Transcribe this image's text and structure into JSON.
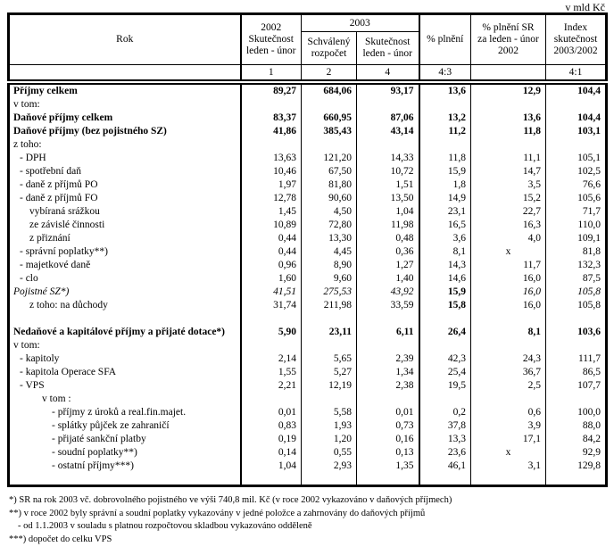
{
  "unit_label": "v mld Kč",
  "header": {
    "rok": "Rok",
    "y2002": {
      "l1": "2002",
      "l2": "Skutečnost",
      "l3": "leden - únor"
    },
    "y2003": "2003",
    "schvaleny": {
      "l1": "Schválený",
      "l2": "rozpočet"
    },
    "skutecnost2003": {
      "l1": "Skutečnost",
      "l2": "leden - únor"
    },
    "plneni": "% plnění",
    "plneni_sr": {
      "l1": "% plnění SR",
      "l2": "za leden - únor",
      "l3": "2002"
    },
    "index": {
      "l1": "Index",
      "l2": "skutečnost",
      "l3": "2003/2002"
    },
    "nums": {
      "c1": "1",
      "c2": "2",
      "c3": "4",
      "c4": "4:3",
      "c5": "",
      "c6": "4:1"
    }
  },
  "rows": [
    {
      "label": "Příjmy celkem",
      "indent": 0,
      "style": "bold",
      "values": [
        "89,27",
        "684,06",
        "93,17",
        "13,6",
        "12,9",
        "104,4"
      ]
    },
    {
      "label": "v tom:",
      "indent": 0,
      "style": "",
      "values": [
        "",
        "",
        "",
        "",
        "",
        ""
      ]
    },
    {
      "label": "Daňové příjmy celkem",
      "indent": 0,
      "style": "bold",
      "values": [
        "83,37",
        "660,95",
        "87,06",
        "13,2",
        "13,6",
        "104,4"
      ]
    },
    {
      "label": "Daňové příjmy (bez pojistného SZ)",
      "indent": 0,
      "style": "bold",
      "values": [
        "41,86",
        "385,43",
        "43,14",
        "11,2",
        "11,8",
        "103,1"
      ]
    },
    {
      "label": "z toho:",
      "indent": 0,
      "style": "",
      "values": [
        "",
        "",
        "",
        "",
        "",
        ""
      ]
    },
    {
      "label": "- DPH",
      "indent": 1,
      "style": "",
      "values": [
        "13,63",
        "121,20",
        "14,33",
        "11,8",
        "11,1",
        "105,1"
      ]
    },
    {
      "label": "- spotřební daň",
      "indent": 1,
      "style": "",
      "values": [
        "10,46",
        "67,50",
        "10,72",
        "15,9",
        "14,7",
        "102,5"
      ]
    },
    {
      "label": "- daně z příjmů PO",
      "indent": 1,
      "style": "",
      "values": [
        "1,97",
        "81,80",
        "1,51",
        "1,8",
        "3,5",
        "76,6"
      ]
    },
    {
      "label": "- daně z příjmů FO",
      "indent": 1,
      "style": "",
      "values": [
        "12,78",
        "90,60",
        "13,50",
        "14,9",
        "15,2",
        "105,6"
      ]
    },
    {
      "label": "vybíraná srážkou",
      "indent": 2,
      "style": "",
      "values": [
        "1,45",
        "4,50",
        "1,04",
        "23,1",
        "22,7",
        "71,7"
      ]
    },
    {
      "label": "ze závislé činnosti",
      "indent": 2,
      "style": "",
      "values": [
        "10,89",
        "72,80",
        "11,98",
        "16,5",
        "16,3",
        "110,0"
      ]
    },
    {
      "label": "z přiznání",
      "indent": 2,
      "style": "",
      "values": [
        "0,44",
        "13,30",
        "0,48",
        "3,6",
        "4,0",
        "109,1"
      ]
    },
    {
      "label": "- správní poplatky**)",
      "indent": 1,
      "style": "",
      "values": [
        "0,44",
        "4,45",
        "0,36",
        "8,1",
        "x",
        "81,8"
      ]
    },
    {
      "label": "- majetkové daně",
      "indent": 1,
      "style": "",
      "values": [
        "0,96",
        "8,90",
        "1,27",
        "14,3",
        "11,7",
        "132,3"
      ]
    },
    {
      "label": "- clo",
      "indent": 1,
      "style": "",
      "values": [
        "1,60",
        "9,60",
        "1,40",
        "14,6",
        "16,0",
        "87,5"
      ]
    },
    {
      "label": "Pojistné SZ*)",
      "indent": 0,
      "style": "italic",
      "values": [
        "41,51",
        "275,53",
        "43,92",
        "15,9",
        "16,0",
        "105,8"
      ],
      "value_styles": [
        "italic",
        "italic",
        "italic",
        "bold",
        "italic",
        "italic"
      ]
    },
    {
      "label": "z toho: na důchody",
      "indent": 2,
      "style": "",
      "values": [
        "31,74",
        "211,98",
        "33,59",
        "15,8",
        "16,0",
        "105,8"
      ],
      "value_styles": [
        "",
        "",
        "",
        "bold",
        "",
        ""
      ]
    },
    {
      "label": "",
      "indent": 0,
      "style": "",
      "values": [
        "",
        "",
        "",
        "",
        "",
        ""
      ]
    },
    {
      "label": "Nedaňové a kapitálové příjmy a přijaté dotace*)",
      "indent": 0,
      "style": "bold",
      "values": [
        "5,90",
        "23,11",
        "6,11",
        "26,4",
        "8,1",
        "103,6"
      ]
    },
    {
      "label": "v tom:",
      "indent": 0,
      "style": "",
      "values": [
        "",
        "",
        "",
        "",
        "",
        ""
      ]
    },
    {
      "label": "- kapitoly",
      "indent": 1,
      "style": "",
      "values": [
        "2,14",
        "5,65",
        "2,39",
        "42,3",
        "24,3",
        "111,7"
      ]
    },
    {
      "label": "- kapitola Operace SFA",
      "indent": 1,
      "style": "",
      "values": [
        "1,55",
        "5,27",
        "1,34",
        "25,4",
        "36,7",
        "86,5"
      ]
    },
    {
      "label": "- VPS",
      "indent": 1,
      "style": "",
      "values": [
        "2,21",
        "12,19",
        "2,38",
        "19,5",
        "2,5",
        "107,7"
      ]
    },
    {
      "label": "v tom :",
      "indent": 3,
      "style": "",
      "values": [
        "",
        "",
        "",
        "",
        "",
        ""
      ]
    },
    {
      "label": "- příjmy z úroků a real.fin.majet.",
      "indent": 4,
      "style": "",
      "values": [
        "0,01",
        "5,58",
        "0,01",
        "0,2",
        "0,6",
        "100,0"
      ]
    },
    {
      "label": "- splátky půjček ze zahraničí",
      "indent": 4,
      "style": "",
      "values": [
        "0,83",
        "1,93",
        "0,73",
        "37,8",
        "3,9",
        "88,0"
      ]
    },
    {
      "label": "- přijaté sankční platby",
      "indent": 4,
      "style": "",
      "values": [
        "0,19",
        "1,20",
        "0,16",
        "13,3",
        "17,1",
        "84,2"
      ]
    },
    {
      "label": "- soudní poplatky**)",
      "indent": 4,
      "style": "",
      "values": [
        "0,14",
        "0,55",
        "0,13",
        "23,6",
        "x",
        "92,9"
      ]
    },
    {
      "label": "- ostatní příjmy***)",
      "indent": 4,
      "style": "",
      "values": [
        "1,04",
        "2,93",
        "1,35",
        "46,1",
        "3,1",
        "129,8"
      ]
    },
    {
      "label": "",
      "indent": 0,
      "style": "",
      "values": [
        "",
        "",
        "",
        "",
        "",
        ""
      ]
    }
  ],
  "footnotes": [
    {
      "text": "*)  SR na rok 2003 vč. dobrovolného pojistného ve výši 740,8 mil. Kč (v roce 2002 vykazováno v daňových příjmech)",
      "sub": false
    },
    {
      "text": "**) v roce 2002 byly správní a soudní poplatky vykazovány v jedné položce a zahrnovány do daňových příjmů",
      "sub": false
    },
    {
      "text": "- od 1.1.2003 v souladu s platnou rozpočtovou skladbou vykazováno odděleně",
      "sub": true
    },
    {
      "text": "***) dopočet do celku VPS",
      "sub": false
    }
  ]
}
